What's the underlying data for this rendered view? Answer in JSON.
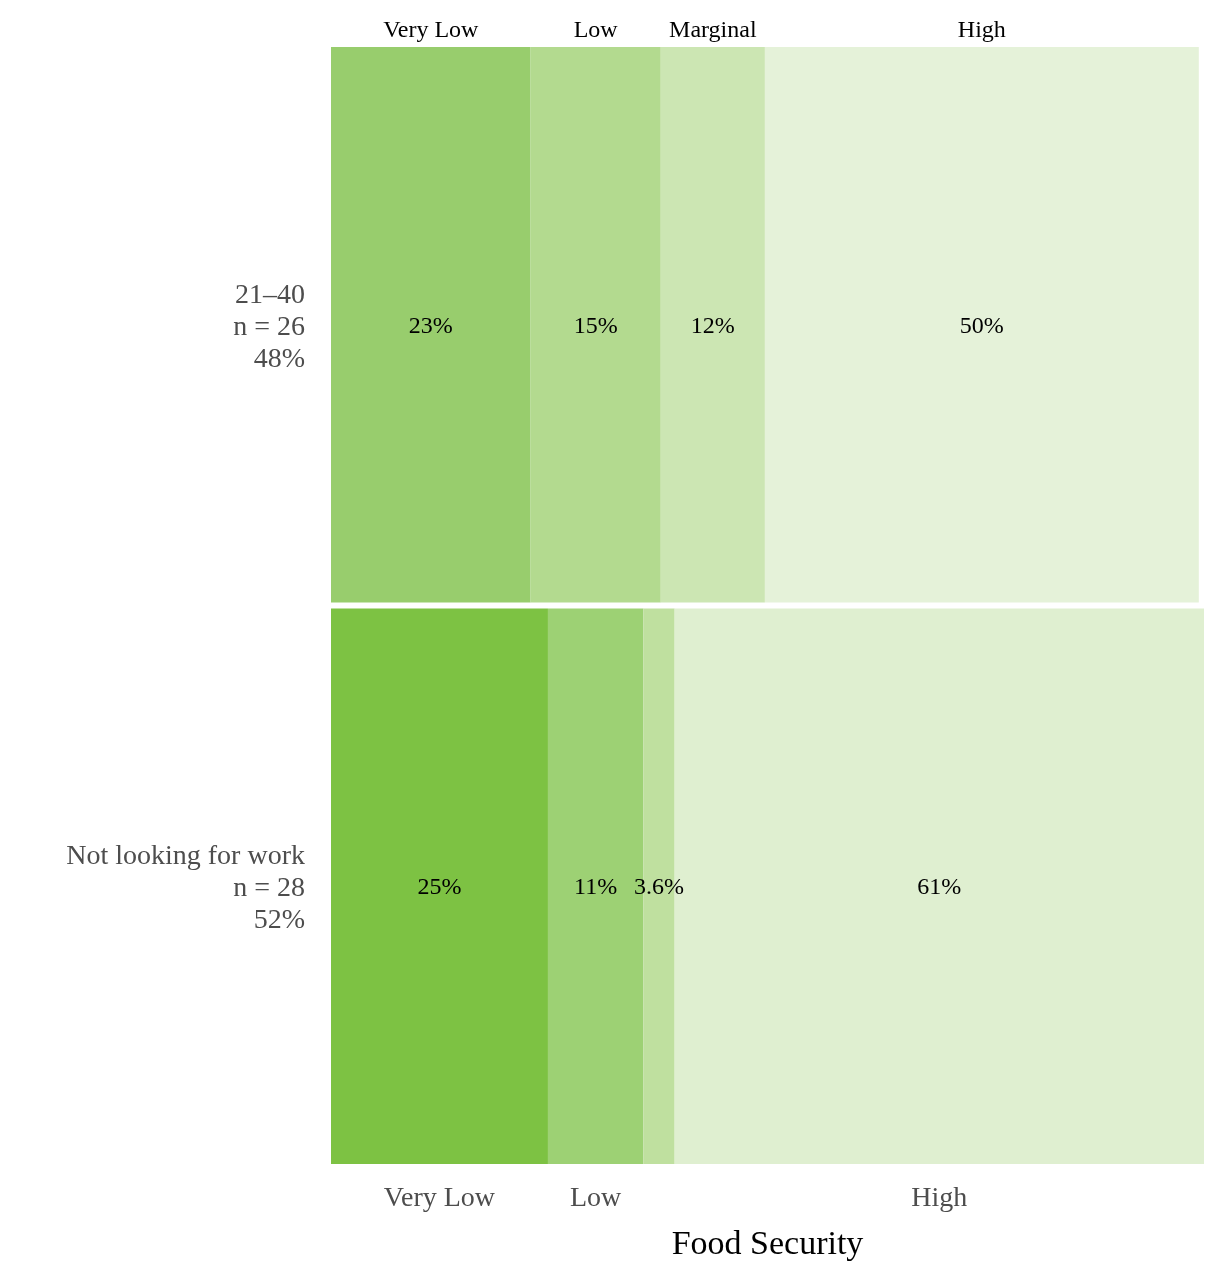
{
  "chart_data": {
    "type": "bar",
    "orientation": "horizontal",
    "stacked": true,
    "xlabel": "Food Security",
    "tick_labels": "y",
    "categories": [
      "21–40\nn = 26\n48%",
      "Not looking for work\nn = 28\n52%"
    ],
    "series": [
      {
        "name": "Very Low",
        "colors": [
          "#98cd6d",
          "#7dc243"
        ],
        "values": [
          23,
          25
        ],
        "value_labels": [
          "23%",
          "25%"
        ]
      },
      {
        "name": "Low",
        "colors": [
          "#b3da8f",
          "#9dd174"
        ],
        "values": [
          15,
          11
        ],
        "value_labels": [
          "15%",
          "11%"
        ]
      },
      {
        "name": "Marginal",
        "colors": [
          "#cce6b3",
          "#bfe09f"
        ],
        "values": [
          12,
          3.6
        ],
        "value_labels": [
          "12%",
          "3.6%"
        ]
      },
      {
        "name": "High",
        "colors": [
          "#e5f2d9",
          "#dfefd0"
        ],
        "values": [
          50,
          61
        ],
        "value_labels": [
          "50%",
          "61%"
        ]
      }
    ]
  }
}
